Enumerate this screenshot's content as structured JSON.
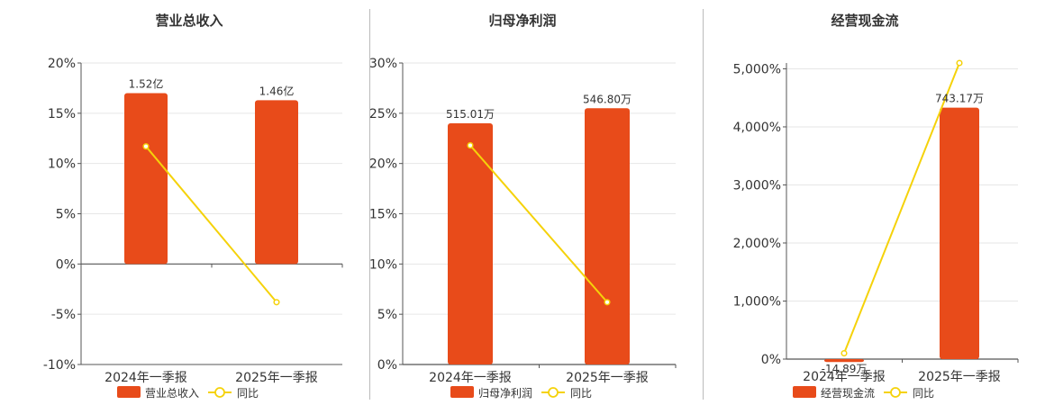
{
  "colors": {
    "bar": "#E84B1A",
    "line": "#F5D20A",
    "axis": "#555555",
    "grid": "#E6E6E6",
    "text": "#333333"
  },
  "chart_data": [
    {
      "type": "bar",
      "title": "营业总收入",
      "categories": [
        "2024年一季报",
        "2025年一季报"
      ],
      "bar_labels": [
        "1.52亿",
        "1.46亿"
      ],
      "bar_positions_on_axis": [
        17.0,
        16.3
      ],
      "line_values": [
        11.7,
        -3.8
      ],
      "yticks": [
        "20%",
        "15%",
        "10%",
        "5%",
        "0%",
        "-5%",
        "-10%"
      ],
      "ylim": [
        -10,
        20
      ],
      "legend": [
        "营业总收入",
        "同比"
      ],
      "grid": true
    },
    {
      "type": "bar",
      "title": "归母净利润",
      "categories": [
        "2024年一季报",
        "2025年一季报"
      ],
      "bar_labels": [
        "515.01万",
        "546.80万"
      ],
      "bar_positions_on_axis": [
        24.0,
        25.5
      ],
      "line_values": [
        21.8,
        6.2
      ],
      "yticks": [
        "30%",
        "25%",
        "20%",
        "15%",
        "10%",
        "5%",
        "0%"
      ],
      "ylim": [
        0,
        30
      ],
      "legend": [
        "归母净利润",
        "同比"
      ],
      "grid": true
    },
    {
      "type": "bar",
      "title": "经营现金流",
      "categories": [
        "2024年一季报",
        "2025年一季报"
      ],
      "bar_labels": [
        "-14.89万",
        "743.17万"
      ],
      "bar_positions_on_axis": [
        -50,
        4330
      ],
      "line_values": [
        100,
        5100
      ],
      "yticks": [
        "5,000%",
        "4,000%",
        "3,000%",
        "2,000%",
        "1,000%",
        "0%"
      ],
      "ylim": [
        0,
        5100
      ],
      "legend": [
        "经营现金流",
        "同比"
      ],
      "grid": true
    }
  ]
}
